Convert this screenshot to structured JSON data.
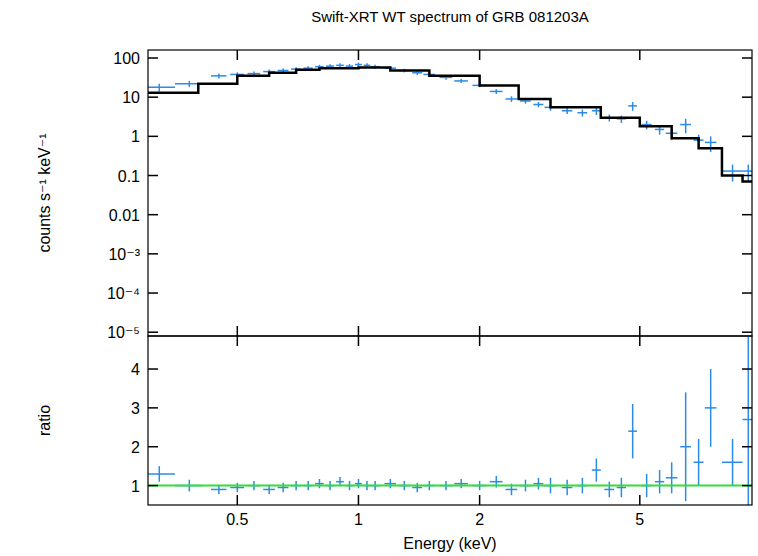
{
  "chart_data": [
    {
      "type": "scatter",
      "title": "Swift-XRT WT spectrum of GRB 081203A",
      "y_label": "counts s⁻¹ keV⁻¹",
      "log": true,
      "tick_labels": "y",
      "xlim": [
        0.3,
        9.5
      ],
      "xticks": [
        0.5,
        1,
        2,
        5
      ],
      "ylim": [
        8e-06,
        160
      ],
      "yticks": [
        100,
        10,
        1,
        0.1,
        0.01,
        {
          "value": 0.001,
          "label": "10⁻³"
        },
        {
          "value": 0.0001,
          "label": "10⁻⁴"
        },
        {
          "value": 1e-05,
          "label": "10⁻⁵"
        }
      ],
      "series": [
        {
          "type": "scatter",
          "color": "#2b8be6",
          "x": [
            0.32,
            0.38,
            0.45,
            0.5,
            0.55,
            0.6,
            0.65,
            0.7,
            0.75,
            0.8,
            0.85,
            0.9,
            0.95,
            1.0,
            1.05,
            1.1,
            1.2,
            1.3,
            1.4,
            1.5,
            1.65,
            1.8,
            2.0,
            2.2,
            2.4,
            2.6,
            2.8,
            3.0,
            3.3,
            3.6,
            3.9,
            4.2,
            4.5,
            4.8,
            5.2,
            5.6,
            6.0,
            6.5,
            7.0,
            7.5,
            8.5,
            9.3
          ],
          "xerr": [
            0.03,
            0.03,
            0.02,
            0.02,
            0.02,
            0.02,
            0.02,
            0.02,
            0.02,
            0.02,
            0.02,
            0.02,
            0.02,
            0.02,
            0.02,
            0.03,
            0.04,
            0.04,
            0.04,
            0.05,
            0.06,
            0.07,
            0.08,
            0.08,
            0.08,
            0.08,
            0.08,
            0.1,
            0.1,
            0.1,
            0.1,
            0.12,
            0.12,
            0.12,
            0.15,
            0.15,
            0.2,
            0.2,
            0.2,
            0.25,
            0.5,
            0.3
          ],
          "values": [
            18,
            22,
            35,
            38,
            40,
            45,
            48,
            52,
            55,
            60,
            62,
            65,
            62,
            68,
            65,
            60,
            55,
            48,
            42,
            38,
            32,
            26,
            20,
            14,
            9,
            8,
            6.5,
            5.5,
            4.5,
            4,
            4.5,
            3,
            2.8,
            6,
            2,
            1.5,
            1.2,
            2,
            0.8,
            0.7,
            0.13,
            0.13
          ],
          "yerr": [
            4,
            4,
            5,
            5,
            5,
            6,
            6,
            6,
            7,
            7,
            7,
            8,
            8,
            8,
            8,
            7,
            6,
            5,
            5,
            4,
            4,
            3,
            2,
            2,
            1.5,
            1.2,
            1,
            1,
            0.8,
            0.8,
            1,
            0.6,
            0.6,
            1.5,
            0.5,
            0.4,
            0.4,
            0.8,
            0.3,
            0.3,
            0.06,
            0.06
          ]
        },
        {
          "type": "line",
          "line_style": "step",
          "color": "#000000",
          "x": [
            0.3,
            0.4,
            0.5,
            0.6,
            0.7,
            0.8,
            1.0,
            1.2,
            1.5,
            2.0,
            2.5,
            3,
            4,
            5,
            6,
            7,
            8,
            9,
            9.5
          ],
          "values": [
            13,
            22,
            35,
            42,
            50,
            55,
            57,
            48,
            35,
            20,
            9,
            5.5,
            3,
            1.8,
            0.9,
            0.5,
            0.1,
            0.07,
            0.07
          ]
        }
      ]
    },
    {
      "type": "scatter",
      "x_label": "Energy (keV)",
      "y_label": "ratio",
      "log": "x",
      "xlim": [
        0.3,
        9.5
      ],
      "xticks": [
        0.5,
        1,
        2,
        5
      ],
      "ylim": [
        0.5,
        4.85
      ],
      "yticks": [
        1,
        2,
        3,
        4
      ],
      "series": [
        {
          "type": "scatter",
          "color": "#2b8be6",
          "x": [
            0.32,
            0.38,
            0.45,
            0.5,
            0.55,
            0.6,
            0.65,
            0.7,
            0.75,
            0.8,
            0.85,
            0.9,
            0.95,
            1.0,
            1.05,
            1.1,
            1.2,
            1.3,
            1.4,
            1.5,
            1.65,
            1.8,
            2.0,
            2.2,
            2.4,
            2.6,
            2.8,
            3.0,
            3.3,
            3.6,
            3.9,
            4.2,
            4.5,
            4.8,
            5.2,
            5.6,
            6.0,
            6.5,
            7.0,
            7.5,
            8.5,
            9.3
          ],
          "xerr": [
            0.03,
            0.03,
            0.02,
            0.02,
            0.02,
            0.02,
            0.02,
            0.02,
            0.02,
            0.02,
            0.02,
            0.02,
            0.02,
            0.02,
            0.02,
            0.03,
            0.04,
            0.04,
            0.04,
            0.05,
            0.06,
            0.07,
            0.08,
            0.08,
            0.08,
            0.08,
            0.08,
            0.1,
            0.1,
            0.1,
            0.1,
            0.12,
            0.12,
            0.12,
            0.15,
            0.15,
            0.2,
            0.2,
            0.2,
            0.25,
            0.5,
            0.3
          ],
          "values": [
            1.3,
            1.0,
            0.9,
            0.95,
            1.0,
            0.9,
            0.95,
            1.0,
            1.0,
            1.05,
            1.0,
            1.1,
            1.0,
            1.05,
            1.0,
            1.0,
            1.05,
            1.0,
            0.95,
            1.0,
            1.0,
            1.05,
            1.0,
            1.1,
            0.9,
            1.0,
            1.05,
            1.0,
            0.95,
            1.0,
            1.4,
            0.9,
            0.95,
            2.4,
            1.0,
            1.1,
            1.2,
            2.0,
            1.6,
            3.0,
            1.6,
            2.7
          ],
          "yerr": [
            0.2,
            0.15,
            0.12,
            0.12,
            0.12,
            0.12,
            0.12,
            0.12,
            0.12,
            0.12,
            0.12,
            0.12,
            0.12,
            0.12,
            0.12,
            0.12,
            0.12,
            0.12,
            0.12,
            0.12,
            0.12,
            0.12,
            0.12,
            0.15,
            0.15,
            0.15,
            0.15,
            0.2,
            0.2,
            0.2,
            0.3,
            0.2,
            0.25,
            0.7,
            0.3,
            0.3,
            0.4,
            1.4,
            0.6,
            1.0,
            0.6,
            2.5
          ]
        },
        {
          "type": "line",
          "color": "#33dd33",
          "x": [
            0.3,
            9.5
          ],
          "values": [
            1,
            1
          ]
        }
      ]
    }
  ]
}
